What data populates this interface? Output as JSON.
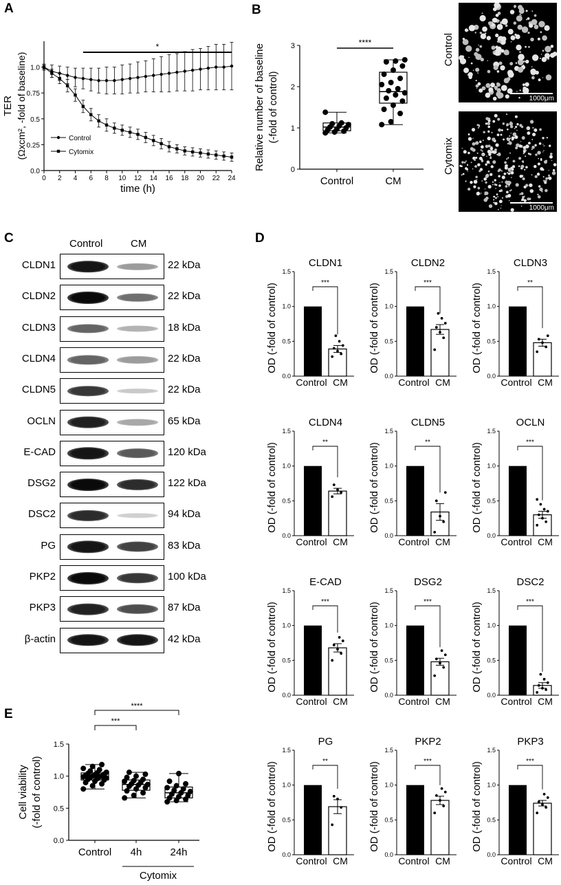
{
  "panel_labels": [
    "A",
    "B",
    "C",
    "D",
    "E"
  ],
  "chart_data": [
    {
      "panel": "A",
      "type": "line",
      "ylabel_line1": "TER",
      "ylabel_line2": "(Ωxcm², -fold of baseline)",
      "xlabel": "time (h)",
      "xlim": [
        0,
        24
      ],
      "ylim": [
        0.0,
        1.25
      ],
      "xticks": [
        0,
        2,
        4,
        6,
        8,
        10,
        12,
        14,
        16,
        18,
        20,
        22,
        24
      ],
      "yticks": [
        0.0,
        0.25,
        0.5,
        0.75,
        1.0
      ],
      "ytick_labels": [
        "0.0",
        "0.25",
        "0.5",
        "0.75",
        "1.0"
      ],
      "significance": "*",
      "sig_span": [
        5,
        24
      ],
      "series": [
        {
          "name": "Control",
          "marker": "circle",
          "x": [
            0,
            1,
            2,
            3,
            4,
            5,
            6,
            7,
            8,
            9,
            10,
            11,
            12,
            13,
            14,
            15,
            16,
            17,
            18,
            19,
            20,
            21,
            22,
            23,
            24
          ],
          "y": [
            1.0,
            0.96,
            0.94,
            0.92,
            0.9,
            0.89,
            0.88,
            0.87,
            0.87,
            0.87,
            0.88,
            0.89,
            0.9,
            0.91,
            0.92,
            0.93,
            0.94,
            0.95,
            0.96,
            0.97,
            0.98,
            0.99,
            1.0,
            1.0,
            1.01
          ],
          "err": [
            0.03,
            0.06,
            0.07,
            0.08,
            0.09,
            0.1,
            0.11,
            0.12,
            0.13,
            0.13,
            0.14,
            0.14,
            0.15,
            0.15,
            0.16,
            0.17,
            0.18,
            0.18,
            0.19,
            0.2,
            0.2,
            0.21,
            0.22,
            0.22,
            0.23
          ]
        },
        {
          "name": "Cytomix",
          "marker": "square",
          "x": [
            0,
            1,
            2,
            3,
            4,
            5,
            6,
            7,
            8,
            9,
            10,
            11,
            12,
            13,
            14,
            15,
            16,
            17,
            18,
            19,
            20,
            21,
            22,
            23,
            24
          ],
          "y": [
            1.0,
            0.94,
            0.89,
            0.82,
            0.73,
            0.62,
            0.54,
            0.48,
            0.44,
            0.41,
            0.39,
            0.37,
            0.35,
            0.32,
            0.29,
            0.26,
            0.23,
            0.21,
            0.19,
            0.18,
            0.17,
            0.16,
            0.15,
            0.14,
            0.13
          ],
          "err": [
            0.02,
            0.04,
            0.05,
            0.06,
            0.06,
            0.06,
            0.06,
            0.06,
            0.06,
            0.05,
            0.05,
            0.05,
            0.05,
            0.05,
            0.05,
            0.05,
            0.05,
            0.04,
            0.04,
            0.04,
            0.04,
            0.04,
            0.04,
            0.04,
            0.04
          ]
        }
      ]
    },
    {
      "panel": "B",
      "type": "box",
      "ylabel_line1": "Relative number of baseline",
      "ylabel_line2": "(-fold of control)",
      "categories": [
        "Control",
        "CM"
      ],
      "ylim": [
        0,
        3
      ],
      "yticks": [
        0,
        1,
        2,
        3
      ],
      "significance": "****",
      "groups": [
        {
          "name": "Control",
          "min": 0.88,
          "q1": 0.93,
          "median": 1.02,
          "q3": 1.12,
          "max": 1.38,
          "points": [
            0.88,
            0.9,
            0.92,
            0.95,
            0.97,
            1.0,
            1.02,
            1.05,
            1.08,
            1.1,
            1.12,
            1.38
          ]
        },
        {
          "name": "CM",
          "min": 1.08,
          "q1": 1.6,
          "median": 1.88,
          "q3": 2.35,
          "max": 2.65,
          "points": [
            1.08,
            1.15,
            1.35,
            1.45,
            1.55,
            1.65,
            1.72,
            1.8,
            1.85,
            1.9,
            1.95,
            2.05,
            2.1,
            2.2,
            2.3,
            2.4,
            2.5,
            2.6,
            2.62,
            2.65
          ]
        }
      ]
    },
    {
      "panel": "D",
      "type": "bar",
      "ylabel": "OD (-fold of control)",
      "categories": [
        "Control",
        "CM"
      ],
      "ylim": [
        0,
        1.5
      ],
      "yticks": [
        "0.0",
        "0.5",
        "1.0",
        "1.5"
      ],
      "subplots": [
        {
          "title": "CLDN1",
          "values": [
            1.0,
            0.39
          ],
          "sem": 0.05,
          "sig": "***",
          "points": [
            0.28,
            0.32,
            0.36,
            0.4,
            0.44,
            0.5,
            0.58
          ]
        },
        {
          "title": "CLDN2",
          "values": [
            1.0,
            0.67
          ],
          "sem": 0.07,
          "sig": "***",
          "points": [
            0.38,
            0.55,
            0.63,
            0.7,
            0.76,
            0.83,
            0.9
          ]
        },
        {
          "title": "CLDN3",
          "values": [
            1.0,
            0.48
          ],
          "sem": 0.05,
          "sig": "**",
          "points": [
            0.35,
            0.42,
            0.48,
            0.53,
            0.58
          ]
        },
        {
          "title": "CLDN4",
          "values": [
            1.0,
            0.64
          ],
          "sem": 0.04,
          "sig": "**",
          "points": [
            0.56,
            0.62,
            0.66,
            0.73
          ]
        },
        {
          "title": "CLDN5",
          "values": [
            1.0,
            0.34
          ],
          "sem": 0.12,
          "sig": "**",
          "points": [
            0.05,
            0.2,
            0.28,
            0.5,
            0.62
          ]
        },
        {
          "title": "OCLN",
          "values": [
            1.0,
            0.3
          ],
          "sem": 0.05,
          "sig": "***",
          "points": [
            0.15,
            0.2,
            0.25,
            0.3,
            0.35,
            0.38,
            0.45,
            0.52
          ]
        },
        {
          "title": "E-CAD",
          "values": [
            1.0,
            0.68
          ],
          "sem": 0.06,
          "sig": "***",
          "points": [
            0.5,
            0.6,
            0.66,
            0.72,
            0.78,
            0.83
          ]
        },
        {
          "title": "DSG2",
          "values": [
            1.0,
            0.48
          ],
          "sem": 0.05,
          "sig": "***",
          "points": [
            0.28,
            0.4,
            0.46,
            0.52,
            0.58,
            0.64
          ]
        },
        {
          "title": "DSC2",
          "values": [
            1.0,
            0.14
          ],
          "sem": 0.04,
          "sig": "***",
          "points": [
            0.04,
            0.08,
            0.1,
            0.14,
            0.18,
            0.23,
            0.3
          ]
        },
        {
          "title": "PG",
          "values": [
            1.0,
            0.69
          ],
          "sem": 0.1,
          "sig": "**",
          "points": [
            0.43,
            0.68,
            0.8,
            0.84
          ]
        },
        {
          "title": "PKP2",
          "values": [
            1.0,
            0.78
          ],
          "sem": 0.06,
          "sig": "***",
          "points": [
            0.6,
            0.7,
            0.78,
            0.85,
            0.9,
            0.95
          ]
        },
        {
          "title": "PKP3",
          "values": [
            1.0,
            0.74
          ],
          "sem": 0.04,
          "sig": "***",
          "points": [
            0.6,
            0.68,
            0.72,
            0.76,
            0.82,
            0.87
          ]
        }
      ]
    },
    {
      "panel": "E",
      "type": "box",
      "ylabel_line1": "Cell viability",
      "ylabel_line2": "(-fold of control)",
      "categories": [
        "Control",
        "4h",
        "24h"
      ],
      "group_label": "Cytomix",
      "ylim": [
        0.0,
        1.5
      ],
      "yticks": [
        "0.0",
        "0.5",
        "1.0",
        "1.5"
      ],
      "comparisons": [
        {
          "from": "Control",
          "to": "4h",
          "sig": "***"
        },
        {
          "from": "Control",
          "to": "24h",
          "sig": "****"
        }
      ],
      "groups": [
        {
          "name": "Control",
          "min": 0.8,
          "q1": 0.94,
          "median": 0.99,
          "q3": 1.05,
          "max": 1.18,
          "points": [
            0.8,
            0.85,
            0.88,
            0.9,
            0.92,
            0.94,
            0.95,
            0.96,
            0.97,
            0.98,
            0.99,
            0.99,
            1.0,
            1.0,
            1.01,
            1.02,
            1.03,
            1.04,
            1.05,
            1.06,
            1.08,
            1.1,
            1.12,
            1.15,
            1.18
          ]
        },
        {
          "name": "4h",
          "min": 0.66,
          "q1": 0.78,
          "median": 0.87,
          "q3": 0.94,
          "max": 1.06,
          "points": [
            0.66,
            0.7,
            0.74,
            0.77,
            0.8,
            0.82,
            0.84,
            0.86,
            0.87,
            0.88,
            0.9,
            0.92,
            0.93,
            0.95,
            0.98,
            1.0,
            1.03,
            1.06
          ]
        },
        {
          "name": "24h",
          "min": 0.6,
          "q1": 0.66,
          "median": 0.74,
          "q3": 0.83,
          "max": 1.04,
          "points": [
            0.6,
            0.62,
            0.64,
            0.66,
            0.68,
            0.7,
            0.72,
            0.74,
            0.76,
            0.78,
            0.8,
            0.82,
            0.85,
            0.88,
            0.92,
            1.04
          ]
        }
      ]
    }
  ],
  "microscopy": {
    "labels": [
      "Control",
      "Cytomix"
    ],
    "scale_bar": "1000μm"
  },
  "western_blot": {
    "columns": [
      "Control",
      "CM"
    ],
    "rows": [
      {
        "protein": "CLDN1",
        "kda": "22 kDa",
        "intensity": [
          0.95,
          0.35
        ]
      },
      {
        "protein": "CLDN2",
        "kda": "22 kDa",
        "intensity": [
          1.0,
          0.55
        ]
      },
      {
        "protein": "CLDN3",
        "kda": "18 kDa",
        "intensity": [
          0.6,
          0.25
        ]
      },
      {
        "protein": "CLDN4",
        "kda": "22 kDa",
        "intensity": [
          0.6,
          0.35
        ]
      },
      {
        "protein": "CLDN5",
        "kda": "22 kDa",
        "intensity": [
          0.8,
          0.15
        ]
      },
      {
        "protein": "OCLN",
        "kda": "65 kDa",
        "intensity": [
          0.9,
          0.3
        ]
      },
      {
        "protein": "E-CAD",
        "kda": "120 kDa",
        "intensity": [
          0.95,
          0.65
        ]
      },
      {
        "protein": "DSG2",
        "kda": "122 kDa",
        "intensity": [
          1.0,
          0.85
        ]
      },
      {
        "protein": "DSC2",
        "kda": "94 kDa",
        "intensity": [
          0.85,
          0.12
        ]
      },
      {
        "protein": "PG",
        "kda": "83 kDa",
        "intensity": [
          0.95,
          0.75
        ]
      },
      {
        "protein": "PKP2",
        "kda": "100 kDa",
        "intensity": [
          1.0,
          0.8
        ]
      },
      {
        "protein": "PKP3",
        "kda": "87 kDa",
        "intensity": [
          0.9,
          0.7
        ]
      },
      {
        "protein": "β-actin",
        "kda": "42 kDa",
        "intensity": [
          0.95,
          0.95
        ]
      }
    ]
  }
}
